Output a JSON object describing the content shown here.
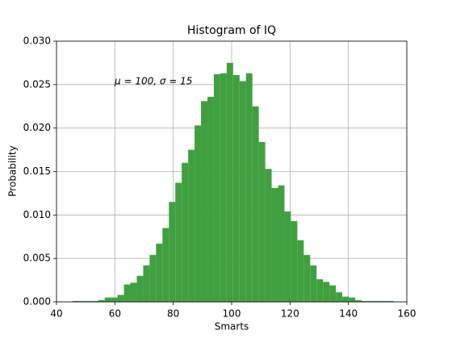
{
  "chart_data": {
    "type": "histogram",
    "title": "Histogram of IQ",
    "x_label": "Smarts",
    "y_label": "Probability",
    "annotation": "μ = 100,  σ = 15",
    "color": "#40a040",
    "grid": true,
    "bins": [
      45.5,
      47.7,
      49.9,
      52.1,
      54.3,
      56.5,
      58.7,
      60.9,
      63.1,
      65.3,
      67.5,
      69.7,
      71.9,
      74.1,
      76.3,
      78.5,
      80.7,
      82.9,
      85.1,
      87.3,
      89.5,
      91.7,
      93.9,
      96.1,
      98.3,
      100.5,
      102.7,
      104.9,
      107.1,
      109.3,
      111.5,
      113.7,
      115.9,
      118.1,
      120.3,
      122.5,
      124.7,
      126.9,
      129.1,
      131.3,
      133.5,
      135.7,
      137.9,
      140.1,
      142.3,
      144.5,
      146.7,
      148.9,
      151.1,
      153.3,
      155.5
    ],
    "values": [
      0.0001,
      0.0001,
      0.0001,
      0.0001,
      0.0002,
      0.0005,
      0.0005,
      0.0008,
      0.002,
      0.0022,
      0.003,
      0.0042,
      0.0054,
      0.0067,
      0.0085,
      0.0115,
      0.0137,
      0.016,
      0.0175,
      0.0203,
      0.0231,
      0.0236,
      0.0262,
      0.0263,
      0.0275,
      0.0261,
      0.0254,
      0.0263,
      0.0225,
      0.0184,
      0.0153,
      0.0131,
      0.0134,
      0.0104,
      0.0093,
      0.0071,
      0.0054,
      0.0042,
      0.0026,
      0.0023,
      0.0019,
      0.0011,
      0.0006,
      0.0005,
      0.0002,
      0.0001,
      0.0001,
      0.0001,
      0.0001,
      0.0001
    ],
    "xlim": [
      40,
      160
    ],
    "xticks": [
      40,
      60,
      80,
      100,
      120,
      140,
      160
    ],
    "ylim": [
      0,
      0.03
    ],
    "yticks": [
      {
        "value": 0,
        "label": "0.000"
      },
      {
        "value": 0.005,
        "label": "0.005"
      },
      {
        "value": 0.01,
        "label": "0.010"
      },
      {
        "value": 0.015,
        "label": "0.015"
      },
      {
        "value": 0.02,
        "label": "0.020"
      },
      {
        "value": 0.025,
        "label": "0.025"
      },
      {
        "value": 0.03,
        "label": "0.030"
      }
    ]
  }
}
